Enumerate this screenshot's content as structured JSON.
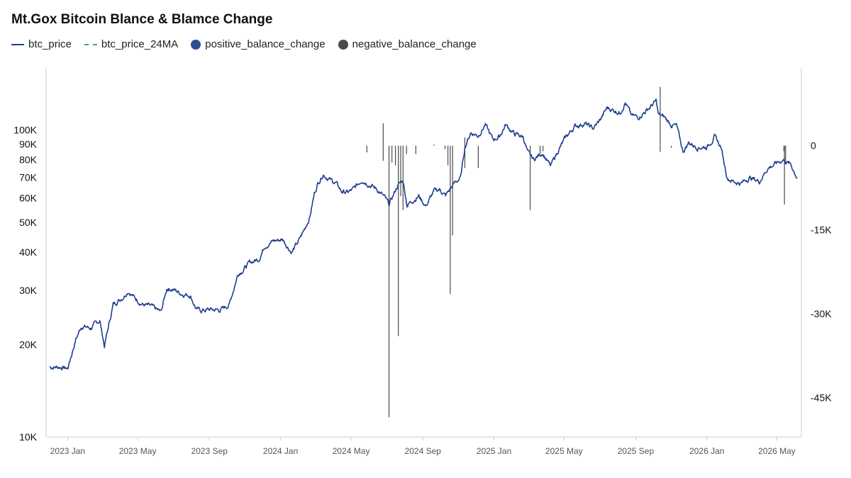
{
  "chart_data": {
    "type": "line",
    "title": "Mt.Gox Bitcoin Blance & Blamce Change",
    "legend_position": "top-left",
    "grid": false,
    "series": [
      {
        "name": "btc_price",
        "color": "#1f3f8f",
        "style": "solid",
        "x": [
          "2022-12-01",
          "2022-12-20",
          "2023-01-01",
          "2023-01-15",
          "2023-01-25",
          "2023-02-10",
          "2023-02-25",
          "2023-03-05",
          "2023-03-20",
          "2023-04-05",
          "2023-04-15",
          "2023-04-25",
          "2023-05-10",
          "2023-05-25",
          "2023-06-10",
          "2023-06-20",
          "2023-06-30",
          "2023-07-15",
          "2023-07-30",
          "2023-08-10",
          "2023-08-18",
          "2023-09-01",
          "2023-09-20",
          "2023-10-05",
          "2023-10-20",
          "2023-10-28",
          "2023-11-10",
          "2023-11-25",
          "2023-12-05",
          "2023-12-20",
          "2024-01-05",
          "2024-01-12",
          "2024-01-20",
          "2024-01-31",
          "2024-02-10",
          "2024-02-20",
          "2024-02-28",
          "2024-03-05",
          "2024-03-14",
          "2024-03-25",
          "2024-04-05",
          "2024-04-15",
          "2024-04-25",
          "2024-05-05",
          "2024-05-20",
          "2024-06-01",
          "2024-06-15",
          "2024-06-28",
          "2024-07-05",
          "2024-07-20",
          "2024-07-29",
          "2024-08-05",
          "2024-08-15",
          "2024-08-25",
          "2024-09-06",
          "2024-09-20",
          "2024-09-30",
          "2024-10-10",
          "2024-10-25",
          "2024-11-05",
          "2024-11-12",
          "2024-11-22",
          "2024-12-05",
          "2024-12-17",
          "2024-12-30",
          "2025-01-10",
          "2025-01-21",
          "2025-02-05",
          "2025-02-20",
          "2025-02-28",
          "2025-03-10",
          "2025-03-25",
          "2025-04-08",
          "2025-04-20",
          "2025-05-05",
          "2025-05-20",
          "2025-06-05",
          "2025-06-20",
          "2025-07-01",
          "2025-07-14",
          "2025-07-25",
          "2025-08-05",
          "2025-08-14",
          "2025-08-25",
          "2025-09-05",
          "2025-09-20",
          "2025-10-06",
          "2025-10-10",
          "2025-10-20",
          "2025-11-01",
          "2025-11-10",
          "2025-11-21",
          "2025-12-01",
          "2025-12-15",
          "2026-01-01",
          "2026-01-14",
          "2026-01-25",
          "2026-02-05",
          "2026-02-15",
          "2026-03-01",
          "2026-03-15",
          "2026-04-01",
          "2026-04-15",
          "2026-05-01",
          "2026-05-12",
          "2026-05-25",
          "2026-06-05"
        ],
        "y": [
          16900,
          16900,
          16700,
          20800,
          23000,
          22600,
          24000,
          19800,
          27000,
          28500,
          30000,
          28500,
          27000,
          26500,
          25500,
          30500,
          30300,
          29300,
          29000,
          26000,
          25800,
          26000,
          25900,
          27000,
          34000,
          35000,
          37000,
          38000,
          42000,
          43500,
          44000,
          42000,
          40000,
          43000,
          47000,
          52000,
          62000,
          67000,
          72000,
          69000,
          67000,
          63000,
          62500,
          64000,
          69000,
          66500,
          64000,
          60000,
          57000,
          66000,
          68500,
          57000,
          59000,
          61000,
          56500,
          63000,
          64000,
          61000,
          67000,
          70000,
          88000,
          98000,
          96000,
          104000,
          93000,
          95000,
          104000,
          97000,
          95000,
          84000,
          80000,
          84500,
          76000,
          85000,
          95000,
          103000,
          105000,
          101000,
          107000,
          118000,
          116000,
          114000,
          123000,
          111000,
          110000,
          116000,
          124000,
          112000,
          110000,
          104000,
          103000,
          85000,
          91000,
          88000,
          88000,
          95000,
          88000,
          70000,
          68000,
          67000,
          70000,
          68000,
          75000,
          78000,
          80000,
          77000,
          70000
        ]
      },
      {
        "name": "btc_price_24MA",
        "color": "#5a8f9a",
        "style": "dashed",
        "x": [],
        "y": []
      },
      {
        "name": "positive_balance_change",
        "color": "#2d4f8f",
        "style": "bar",
        "x": [],
        "y": []
      },
      {
        "name": "negative_balance_change",
        "color": "#4a4a4a",
        "style": "bar",
        "x": [
          "2024-05-28",
          "2024-06-25",
          "2024-07-05",
          "2024-07-10",
          "2024-07-16",
          "2024-07-21",
          "2024-07-25",
          "2024-07-29",
          "2024-08-04",
          "2024-08-20",
          "2024-10-09",
          "2024-10-14",
          "2024-10-18",
          "2024-10-22",
          "2024-11-12",
          "2024-12-05",
          "2025-03-04",
          "2025-03-21",
          "2025-03-26",
          "2025-10-13",
          "2025-11-01",
          "2026-05-13",
          "2026-05-14",
          "2026-05-16"
        ],
        "y": [
          -1200,
          -2700,
          -48500,
          -3000,
          -3500,
          -34000,
          -9000,
          -11500,
          -1500,
          -1500,
          -600,
          -3500,
          -26500,
          -16000,
          -4000,
          -4000,
          -11500,
          -1500,
          -1000,
          -1100,
          -400,
          -1000,
          -10500,
          -3000
        ]
      }
    ],
    "spikes_above_axis": [
      {
        "x": "2024-06-25",
        "y_top": 4000
      },
      {
        "x": "2024-09-20",
        "y_top": 200
      },
      {
        "x": "2024-11-12",
        "y_top": 1500
      },
      {
        "x": "2025-10-13",
        "y_top": 10500
      }
    ],
    "x_axis": {
      "ticks": [
        {
          "date": "2023-01-01",
          "label": "2023 Jan"
        },
        {
          "date": "2023-05-01",
          "label": "2023 May"
        },
        {
          "date": "2023-09-01",
          "label": "2023 Sep"
        },
        {
          "date": "2024-01-01",
          "label": "2024 Jan"
        },
        {
          "date": "2024-05-01",
          "label": "2024 May"
        },
        {
          "date": "2024-09-01",
          "label": "2024 Sep"
        },
        {
          "date": "2025-01-01",
          "label": "2025 Jan"
        },
        {
          "date": "2025-05-01",
          "label": "2025 May"
        },
        {
          "date": "2025-09-01",
          "label": "2025 Sep"
        },
        {
          "date": "2026-01-01",
          "label": "2026 Jan"
        },
        {
          "date": "2026-05-01",
          "label": "2026 May"
        }
      ],
      "range": [
        "2022-11-25",
        "2026-06-12"
      ]
    },
    "y_left": {
      "scale": "log",
      "range": [
        10000,
        160000
      ],
      "ticks": [
        {
          "value": 10000,
          "label": "10K"
        },
        {
          "value": 20000,
          "label": "20K"
        },
        {
          "value": 30000,
          "label": "30K"
        },
        {
          "value": 40000,
          "label": "40K"
        },
        {
          "value": 50000,
          "label": "50K"
        },
        {
          "value": 60000,
          "label": "60K"
        },
        {
          "value": 70000,
          "label": "70K"
        },
        {
          "value": 80000,
          "label": "80K"
        },
        {
          "value": 90000,
          "label": "90K"
        },
        {
          "value": 100000,
          "label": "100K"
        }
      ]
    },
    "y_right": {
      "scale": "linear",
      "range": [
        -52000,
        14000
      ],
      "ticks": [
        {
          "value": 0,
          "label": "0"
        },
        {
          "value": -15000,
          "label": "-15K"
        },
        {
          "value": -30000,
          "label": "-30K"
        },
        {
          "value": -45000,
          "label": "-45K"
        }
      ]
    }
  }
}
